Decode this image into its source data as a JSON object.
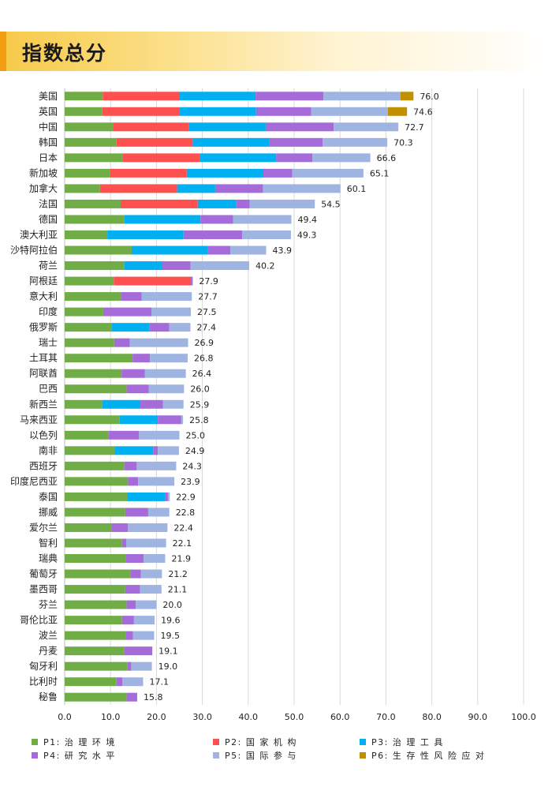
{
  "header": {
    "title": "指数总分"
  },
  "chart_data": {
    "type": "bar",
    "orientation": "horizontal",
    "stacked": true,
    "title": "指数总分",
    "xlim": [
      0,
      100
    ],
    "xticks": [
      "0.0",
      "10.0",
      "20.0",
      "30.0",
      "40.0",
      "50.0",
      "60.0",
      "70.0",
      "80.0",
      "90.0",
      "100.0"
    ],
    "grid": true,
    "legend_position": "bottom",
    "categories": [
      "美国",
      "英国",
      "中国",
      "韩国",
      "日本",
      "新加坡",
      "加拿大",
      "法国",
      "德国",
      "澳大利亚",
      "沙特阿拉伯",
      "荷兰",
      "阿根廷",
      "意大利",
      "印度",
      "俄罗斯",
      "瑞士",
      "土耳其",
      "阿联酋",
      "巴西",
      "新西兰",
      "马来西亚",
      "以色列",
      "南非",
      "西班牙",
      "印度尼西亚",
      "泰国",
      "挪威",
      "爱尔兰",
      "智利",
      "瑞典",
      "葡萄牙",
      "墨西哥",
      "芬兰",
      "哥伦比亚",
      "波兰",
      "丹麦",
      "匈牙利",
      "比利时",
      "秘鲁"
    ],
    "totals": [
      "76.0",
      "74.6",
      "72.7",
      "70.3",
      "66.6",
      "65.1",
      "60.1",
      "54.5",
      "49.4",
      "49.3",
      "43.9",
      "40.2",
      "27.9",
      "27.7",
      "27.5",
      "27.4",
      "26.9",
      "26.8",
      "26.4",
      "26.0",
      "25.9",
      "25.8",
      "25.0",
      "24.9",
      "24.3",
      "23.9",
      "22.9",
      "22.8",
      "22.4",
      "22.1",
      "21.9",
      "21.2",
      "21.1",
      "20.0",
      "19.6",
      "19.5",
      "19.1",
      "19.0",
      "17.1",
      "15.8"
    ],
    "series": [
      {
        "name": "P1: 治 理 环 境",
        "color": "#70ad47",
        "values": [
          8.3,
          8.2,
          10.5,
          11.3,
          12.6,
          9.9,
          7.7,
          12.2,
          13.0,
          9.3,
          14.6,
          13.0,
          10.7,
          12.3,
          8.4,
          10.3,
          10.8,
          14.8,
          12.4,
          13.5,
          8.2,
          12.0,
          9.6,
          11.0,
          13.0,
          13.8,
          13.6,
          13.2,
          10.3,
          12.5,
          13.3,
          14.3,
          13.2,
          13.5,
          12.5,
          13.3,
          13.0,
          13.7,
          11.3,
          13.5
        ]
      },
      {
        "name": "P2: 国 家 机 构",
        "color": "#ff5050",
        "values": [
          16.7,
          16.9,
          16.5,
          16.6,
          16.8,
          16.7,
          16.8,
          16.8,
          0,
          0,
          0,
          0,
          16.8,
          0,
          0,
          0,
          0,
          0,
          0,
          0,
          0,
          0,
          0,
          0,
          0,
          0,
          0,
          0,
          0,
          0,
          0,
          0,
          0,
          0,
          0,
          0,
          0,
          0,
          0,
          0
        ]
      },
      {
        "name": "P3: 治 理 工 具",
        "color": "#00b0f0",
        "values": [
          16.6,
          16.6,
          16.8,
          16.7,
          16.7,
          16.7,
          8.3,
          8.3,
          16.6,
          16.6,
          16.6,
          8.3,
          0,
          0,
          0,
          8.2,
          0,
          0,
          0,
          0,
          8.3,
          8.3,
          0,
          8.3,
          0,
          0,
          8.3,
          0,
          0,
          0,
          0,
          0,
          0,
          0,
          0,
          0,
          0,
          0,
          0,
          0
        ]
      },
      {
        "name": "P4: 研 究 水 平",
        "color": "#a56bd8",
        "values": [
          14.8,
          12.0,
          14.8,
          11.6,
          7.9,
          6.3,
          10.4,
          3.0,
          7.1,
          12.8,
          4.9,
          6.1,
          0.4,
          4.5,
          10.5,
          4.3,
          3.4,
          3.8,
          5.1,
          4.8,
          4.9,
          5.1,
          6.6,
          1.0,
          2.7,
          2.2,
          0.6,
          5.0,
          3.5,
          0.9,
          3.9,
          2.3,
          3.2,
          2.0,
          2.6,
          1.6,
          6.1,
          0.8,
          1.3,
          2.3
        ]
      },
      {
        "name": "P5: 国 际 参 与",
        "color": "#9fb4e0",
        "values": [
          16.8,
          16.7,
          14.1,
          14.1,
          12.6,
          15.5,
          16.9,
          14.2,
          12.7,
          10.6,
          7.8,
          12.8,
          0,
          10.9,
          8.6,
          4.6,
          12.7,
          8.2,
          8.9,
          7.7,
          4.5,
          0.4,
          8.8,
          4.6,
          8.6,
          7.9,
          0.4,
          4.6,
          8.6,
          8.7,
          4.7,
          4.6,
          4.7,
          4.5,
          4.5,
          4.6,
          0,
          4.5,
          4.5,
          0
        ]
      },
      {
        "name": "P6: 生 存 性 风 险 应 对",
        "color": "#bf9000",
        "values": [
          2.8,
          4.2,
          0,
          0,
          0,
          0,
          0,
          0,
          0,
          0,
          0,
          0,
          0,
          0,
          0,
          0,
          0,
          0,
          0,
          0,
          0,
          0,
          0,
          0,
          0,
          0,
          0,
          0,
          0,
          0,
          0,
          0,
          0,
          0,
          0,
          0,
          0,
          0,
          0,
          0
        ]
      }
    ]
  }
}
